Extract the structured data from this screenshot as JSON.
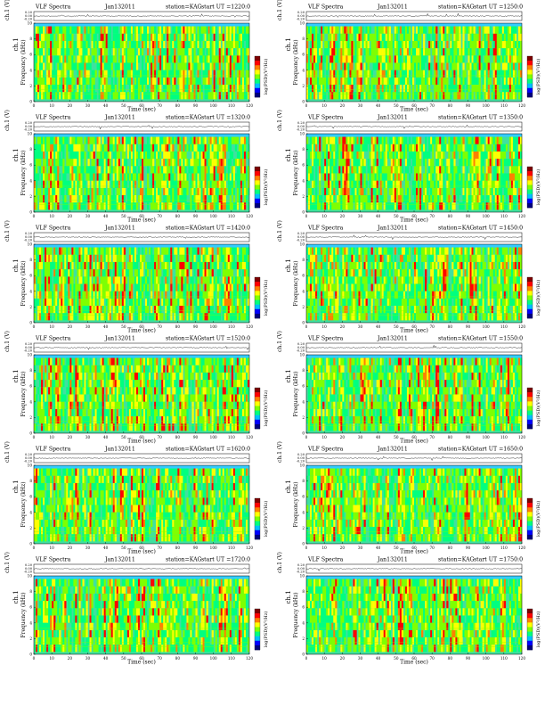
{
  "chart_data": {
    "type": "heatmap",
    "header": {
      "product": "VLF Spectra",
      "date": "Jan132011",
      "station": "station=KAG",
      "start_prefix": "start  UT  ="
    },
    "panel_start_times": [
      "1220:0",
      "1250:0",
      "1320:0",
      "1350:0",
      "1420:0",
      "1450:0",
      "1520:0",
      "1550:0",
      "1620:0",
      "1650:0",
      "1720:0",
      "1750:0"
    ],
    "xlabel": "Time  (sec)",
    "xlim": [
      0,
      120
    ],
    "xticks": [
      "0",
      "10",
      "20",
      "30",
      "40",
      "50",
      "60",
      "70",
      "80",
      "90",
      "100",
      "110",
      "120"
    ],
    "wave_ylabel": "ch.1 (V)",
    "wave_yticks": [
      "0.20",
      "0.00",
      "-0.20"
    ],
    "channel_label": "ch.1",
    "ylabel": "Frequency  (kHz)",
    "ylim": [
      0,
      10
    ],
    "yticks": [
      "0",
      "2",
      "4",
      "6",
      "8",
      "10"
    ],
    "colorbar_label": "log(PSD)(V²/Hz)",
    "colormap": [
      "#00007f",
      "#0000ff",
      "#00bfff",
      "#00ff7f",
      "#7fff00",
      "#ffff00",
      "#ff7f00",
      "#ff0000",
      "#7f0000"
    ]
  }
}
